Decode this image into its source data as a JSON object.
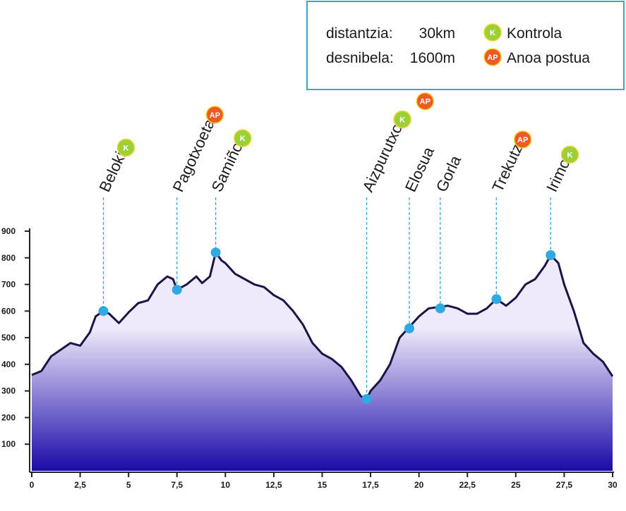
{
  "chart_data": {
    "type": "area",
    "summary": [
      {
        "label": "distantzia:",
        "value": "30km"
      },
      {
        "label": "desnibela:",
        "value": "1600m"
      }
    ],
    "legend": [
      {
        "badge": "K",
        "label": "Kontrola",
        "color": "#9bd136"
      },
      {
        "badge": "AP",
        "label": "Anoa postua",
        "color": "#ee5a24"
      }
    ],
    "x": [
      0,
      0.5,
      1,
      1.5,
      2,
      2.5,
      3,
      3.3,
      3.7,
      4,
      4.5,
      5,
      5.5,
      6,
      6.5,
      7,
      7.3,
      7.5,
      8,
      8.5,
      8.8,
      9.2,
      9.5,
      9.8,
      10,
      10.5,
      11,
      11.5,
      12,
      12.5,
      13,
      13.5,
      14,
      14.5,
      15,
      15.5,
      16,
      16.5,
      17,
      17.3,
      17.5,
      18,
      18.5,
      19,
      19.5,
      20,
      20.5,
      21,
      21.5,
      22,
      22.5,
      23,
      23.5,
      24,
      24.5,
      25,
      25.5,
      26,
      26.5,
      26.8,
      27.2,
      27.5,
      28,
      28.5,
      29,
      29.5,
      30
    ],
    "values": [
      360,
      375,
      430,
      455,
      480,
      470,
      520,
      580,
      600,
      590,
      555,
      595,
      630,
      640,
      700,
      730,
      720,
      680,
      700,
      730,
      705,
      730,
      820,
      790,
      780,
      740,
      720,
      700,
      690,
      660,
      640,
      600,
      550,
      480,
      440,
      420,
      390,
      340,
      280,
      270,
      300,
      340,
      400,
      500,
      540,
      580,
      610,
      615,
      620,
      610,
      590,
      590,
      610,
      645,
      620,
      650,
      700,
      720,
      770,
      810,
      780,
      700,
      600,
      480,
      440,
      410,
      355
    ],
    "line_color": "#1b1546",
    "fill_colors": [
      "#efe9fb",
      "#1a0aa8"
    ],
    "point_color": "#2ea9e1",
    "waypoints": [
      {
        "name": "Beloki",
        "km": 3.7,
        "elevation": 600,
        "badges": [
          "K"
        ]
      },
      {
        "name": "Pagotxoeta",
        "km": 7.5,
        "elevation": 680,
        "badges": [
          "AP"
        ]
      },
      {
        "name": "Samiño",
        "km": 9.5,
        "elevation": 820,
        "badges": [
          "K"
        ]
      },
      {
        "name": "Aizpurutxo",
        "km": 17.3,
        "elevation": 270,
        "badges": [
          "K",
          "AP"
        ]
      },
      {
        "name": "Elosua",
        "km": 19.5,
        "elevation": 535,
        "badges": []
      },
      {
        "name": "Gorla",
        "km": 21.1,
        "elevation": 610,
        "badges": []
      },
      {
        "name": "Trekutz",
        "km": 24,
        "elevation": 645,
        "badges": [
          "AP"
        ]
      },
      {
        "name": "Irimo",
        "km": 26.8,
        "elevation": 810,
        "badges": [
          "K"
        ]
      }
    ],
    "xlim": [
      0,
      30
    ],
    "ylim": [
      0,
      900
    ],
    "xticks": [
      0,
      {
        "value": 2.5,
        "label": "2,5"
      },
      5,
      {
        "value": 7.5,
        "label": "7,5"
      },
      10,
      {
        "value": 12.5,
        "label": "12,5"
      },
      15,
      {
        "value": 17.5,
        "label": "17,5"
      },
      20,
      {
        "value": 22.5,
        "label": "22,5"
      },
      25,
      {
        "value": 27.5,
        "label": "27,5"
      },
      30
    ],
    "yticks": [
      100,
      200,
      300,
      400,
      500,
      600,
      700,
      800,
      900
    ]
  }
}
